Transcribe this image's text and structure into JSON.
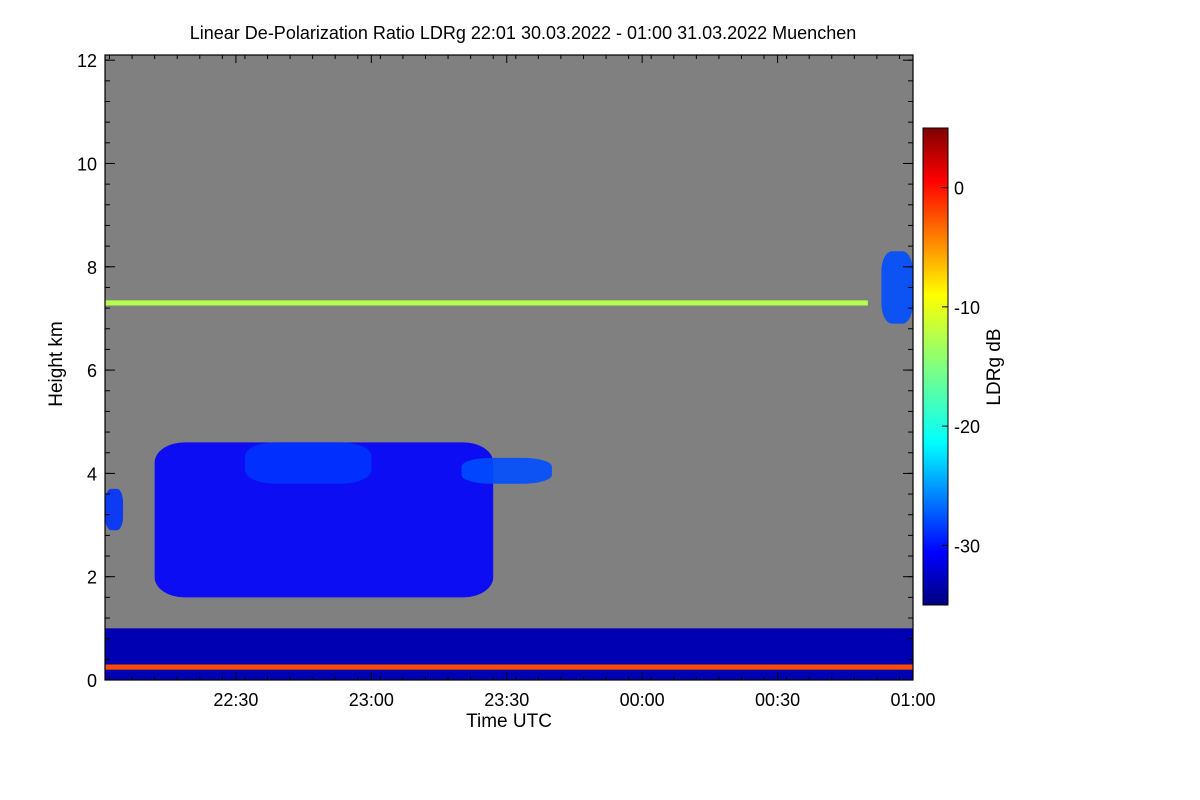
{
  "chart_data": {
    "type": "heatmap",
    "title": "Linear De-Polarization Ratio LDRg   22:01 30.03.2022 - 01:00 31.03.2022 Muenchen",
    "xlabel": "Time UTC",
    "ylabel": "Height km",
    "xlim_minutes_after_midnight": [
      -119,
      60
    ],
    "ylim": [
      0,
      12.1
    ],
    "x_ticks": [
      {
        "label": "22:30",
        "t": -90
      },
      {
        "label": "23:00",
        "t": -60
      },
      {
        "label": "23:30",
        "t": -30
      },
      {
        "label": "00:00",
        "t": 0
      },
      {
        "label": "00:30",
        "t": 30
      },
      {
        "label": "01:00",
        "t": 60
      }
    ],
    "y_ticks": [
      0,
      2,
      4,
      6,
      8,
      10,
      12
    ],
    "colorbar": {
      "label": "LDRg dB",
      "range": [
        -35,
        5
      ],
      "ticks": [
        0,
        -10,
        -20,
        -30
      ],
      "colormap": "jet"
    },
    "background_color": "#808080",
    "regions": [
      {
        "name": "low-cloud-left",
        "t_start": -119,
        "t_end": -115,
        "h_min": 2.9,
        "h_max": 3.7,
        "ldr_db": -28
      },
      {
        "name": "main-cloud",
        "t_start": -108,
        "t_end": -33,
        "h_min": 1.6,
        "h_max": 4.6,
        "ldr_db": -30
      },
      {
        "name": "upper-cloud-band",
        "t_start": -88,
        "t_end": -60,
        "h_min": 3.8,
        "h_max": 4.6,
        "ldr_db": -28
      },
      {
        "name": "cloud-4km",
        "t_start": -40,
        "t_end": -20,
        "h_min": 3.8,
        "h_max": 4.3,
        "ldr_db": -27
      },
      {
        "name": "cirrus-top-right",
        "t_start": 53,
        "t_end": 60,
        "h_min": 6.9,
        "h_max": 8.3,
        "ldr_db": -27
      },
      {
        "name": "boundary-layer",
        "t_start": -119,
        "t_end": 60,
        "h_min": 0.0,
        "h_max": 1.0,
        "ldr_db": -33
      },
      {
        "name": "surface-layer",
        "t_start": -119,
        "t_end": 60,
        "h_min": 0.2,
        "h_max": 0.3,
        "ldr_db": -3
      },
      {
        "name": "thin-layer-7km",
        "t_start": -119,
        "t_end": 50,
        "h_min": 7.25,
        "h_max": 7.35,
        "ldr_db": -13
      }
    ]
  }
}
